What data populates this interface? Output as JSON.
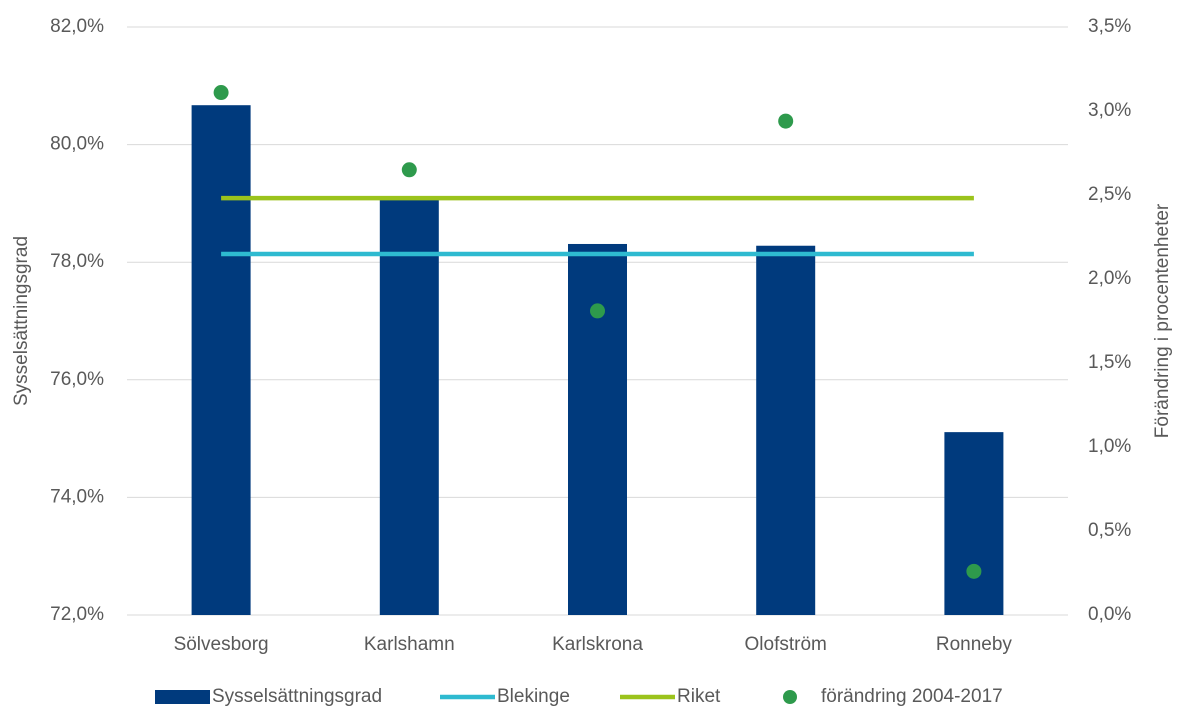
{
  "chart_data": {
    "type": "bar",
    "categories": [
      "Sölvesborg",
      "Karlshamn",
      "Karlskrona",
      "Olofström",
      "Ronneby"
    ],
    "series": [
      {
        "name": "Sysselsättningsgrad",
        "type": "bar",
        "color": "#003a7d",
        "values": [
          80.67,
          79.06,
          78.31,
          78.28,
          75.11
        ]
      },
      {
        "name": "Blekinge",
        "type": "line",
        "color": "#2ebad0",
        "values": [
          78.14,
          78.14,
          78.14,
          78.14,
          78.14
        ]
      },
      {
        "name": "Riket",
        "type": "line",
        "color": "#9bc31c",
        "values": [
          79.09,
          79.09,
          79.09,
          79.09,
          79.09
        ]
      },
      {
        "name": "förändring 2004-2017",
        "type": "scatter",
        "axis": "y2",
        "color": "#2e9a4c",
        "values": [
          3.11,
          2.65,
          1.81,
          2.94,
          0.26
        ]
      }
    ],
    "ylabel": "Sysselsättningsgrad",
    "y2label": "Förändring i procentenheter",
    "ylim": [
      72,
      82
    ],
    "yticks": [
      {
        "value": 72,
        "label": "72,0%"
      },
      {
        "value": 74,
        "label": "74,0%"
      },
      {
        "value": 76,
        "label": "76,0%"
      },
      {
        "value": 78,
        "label": "78,0%"
      },
      {
        "value": 80,
        "label": "80,0%"
      },
      {
        "value": 82,
        "label": "82,0%"
      }
    ],
    "y2lim": [
      0,
      3.5
    ],
    "y2ticks": [
      {
        "value": 0,
        "label": "0,0%"
      },
      {
        "value": 0.5,
        "label": "0,5%"
      },
      {
        "value": 1,
        "label": "1,0%"
      },
      {
        "value": 1.5,
        "label": "1,5%"
      },
      {
        "value": 2,
        "label": "2,0%"
      },
      {
        "value": 2.5,
        "label": "2,5%"
      },
      {
        "value": 3,
        "label": "3,0%"
      },
      {
        "value": 3.5,
        "label": "3,5%"
      }
    ],
    "grid": true,
    "legend": "bottom"
  }
}
